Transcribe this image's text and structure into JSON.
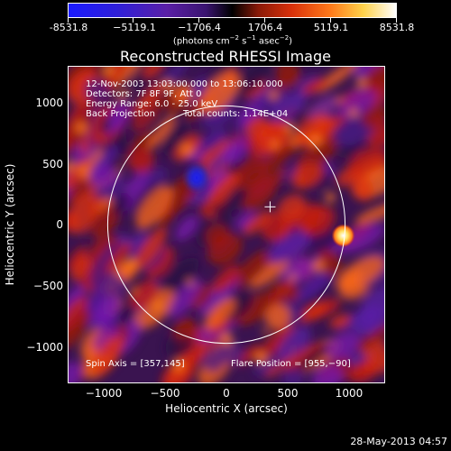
{
  "colorbar": {
    "tick_labels": [
      "-8531.8",
      "−5119.1",
      "−1706.4",
      "1706.4",
      "5119.1",
      "8531.8"
    ],
    "unit_prefix": "(photons cm",
    "unit_exp1": "−2",
    "unit_mid": " s",
    "unit_exp2": "−1",
    "unit_mid2": " asec",
    "unit_exp3": "−2",
    "unit_suffix": ")",
    "colors": {
      "negative_max": "#1a1aff",
      "negative_mid": "#5a1fa6",
      "zero": "#000000",
      "positive_mid": "#d8300a",
      "positive_max": "#ffffff"
    }
  },
  "plot": {
    "title": "Reconstructed RHESSI Image",
    "info_line1": "12-Nov-2003 13:03:00.000 to 13:06:10.000",
    "info_line2": "Detectors: 7F 8F 9F, Att 0",
    "info_line3": "Energy Range: 6.0 - 25.0 keV",
    "info_line4_left": "Back Projection",
    "info_line4_right": "Total counts: 1.14E+04",
    "spin_axis": "Spin Axis = [357,145]",
    "flare_position": "Flare Position = [955,−90]",
    "xlabel": "Heliocentric X (arcsec)",
    "ylabel": "Heliocentric Y (arcsec)",
    "x_ticks": [
      "−1000",
      "−500",
      "0",
      "500",
      "1000"
    ],
    "y_ticks": [
      "1000",
      "500",
      "0",
      "−500",
      "−1000"
    ],
    "x_range": [
      -1290,
      1290
    ],
    "y_range": [
      -1290,
      1290
    ],
    "solar_limb_radius_arcsec": 970,
    "flare_xy": [
      955,
      -90
    ],
    "spin_axis_xy": [
      357,
      145
    ]
  },
  "footer": {
    "timestamp": "28-May-2013 04:57"
  }
}
